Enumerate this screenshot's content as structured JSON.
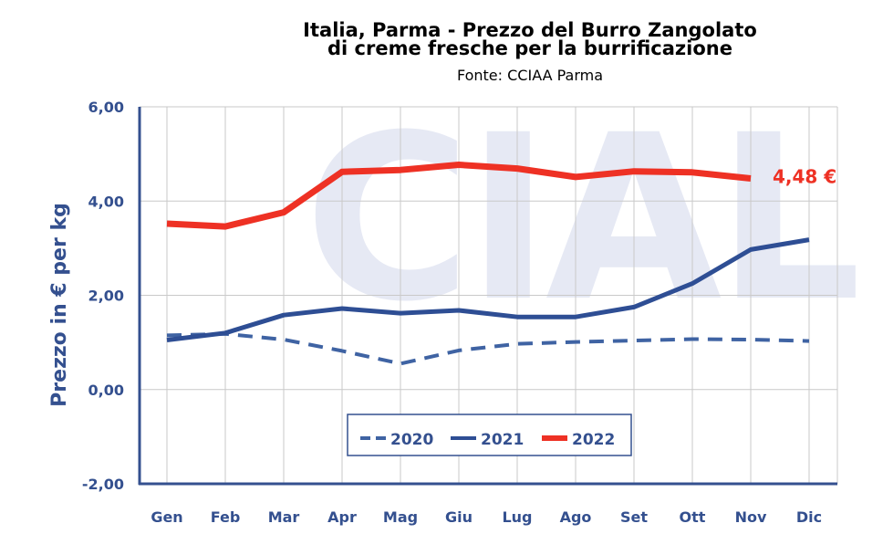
{
  "chart_data": {
    "type": "line",
    "title_line1": "Italia, Parma - Prezzo del Burro Zangolato",
    "title_line2": "di creme fresche per la burrificazione",
    "subtitle": "Fonte: CCIAA Parma",
    "ylabel": "Prezzo in € per kg",
    "categories": [
      "Gen",
      "Feb",
      "Mar",
      "Apr",
      "Mag",
      "Giu",
      "Lug",
      "Ago",
      "Set",
      "Ott",
      "Nov",
      "Dic"
    ],
    "ylim": [
      -2,
      6
    ],
    "yticks": [
      {
        "value": -2,
        "label": "-2,00"
      },
      {
        "value": 0,
        "label": "0,00"
      },
      {
        "value": 2,
        "label": "2,00"
      },
      {
        "value": 4,
        "label": "4,00"
      },
      {
        "value": 6,
        "label": "6,00"
      }
    ],
    "grid": true,
    "legend_position": "bottom-center",
    "series": [
      {
        "name": "2020",
        "color": "#3f63a3",
        "style": "dashed",
        "values": [
          1.15,
          1.18,
          1.06,
          0.82,
          0.55,
          0.83,
          0.97,
          1.01,
          1.04,
          1.07,
          1.06,
          1.03
        ]
      },
      {
        "name": "2021",
        "color": "#2e4e94",
        "style": "solid",
        "values": [
          1.05,
          1.2,
          1.58,
          1.72,
          1.62,
          1.68,
          1.54,
          1.54,
          1.75,
          2.25,
          2.97,
          3.18
        ]
      },
      {
        "name": "2022",
        "color": "#ee3124",
        "style": "solid",
        "values": [
          3.52,
          3.46,
          3.76,
          4.62,
          4.66,
          4.77,
          4.69,
          4.51,
          4.63,
          4.61,
          4.48,
          null
        ]
      }
    ],
    "annotation": {
      "text": "4,48 €",
      "series": "2022",
      "category": "Nov",
      "color": "#ee3124"
    },
    "watermark": {
      "text": "CIAL",
      "color": "#e6e9f4"
    }
  }
}
